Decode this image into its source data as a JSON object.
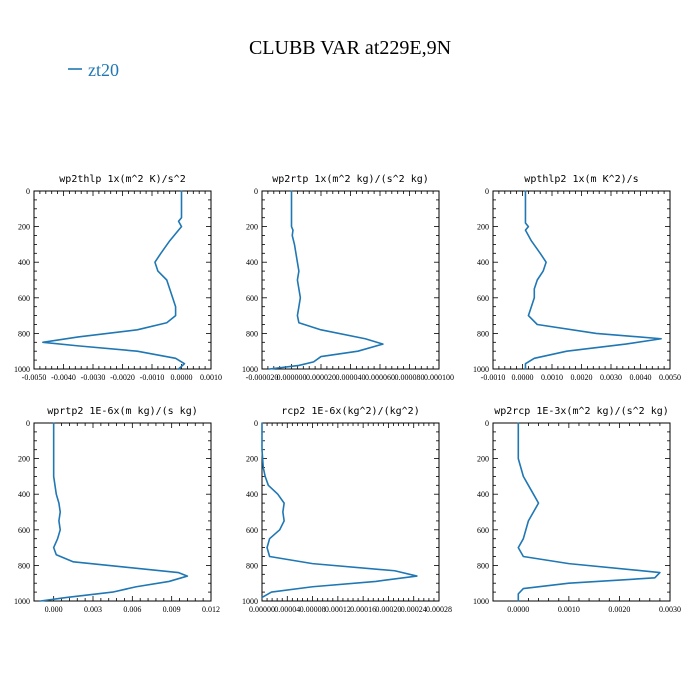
{
  "figure": {
    "title": "CLUBB VAR at229E,9N",
    "legend": [
      {
        "label": "zt20",
        "color": "#1f77b4"
      }
    ]
  },
  "chart_data": [
    {
      "type": "line",
      "title": "wp2thlp  1x(m^2 K)/s^2",
      "xlim": [
        -0.005,
        0.001
      ],
      "ylim": [
        1000,
        0
      ],
      "xticks": [
        -0.005,
        -0.004,
        -0.003,
        -0.002,
        -0.001,
        0.0,
        0.001
      ],
      "xtick_labels": [
        "-0.0050",
        "-0.0040",
        "-0.0030",
        "-0.0020",
        "-0.0010",
        "0.0000",
        "0.0010"
      ],
      "yticks": [
        0,
        200,
        400,
        600,
        800,
        1000
      ],
      "series": [
        {
          "name": "zt20",
          "x": [
            0.0,
            0.0,
            -0.0001,
            0.0,
            -0.0001,
            -0.0004,
            -0.0007,
            -0.0009,
            -0.0008,
            -0.0005,
            -0.0004,
            -0.0003,
            -0.0002,
            -0.0002,
            -0.0005,
            -0.0015,
            -0.0035,
            -0.0047,
            -0.0035,
            -0.0015,
            -0.0002,
            0.0001,
            -0.0001
          ],
          "y": [
            0,
            150,
            170,
            200,
            220,
            280,
            350,
            400,
            450,
            500,
            550,
            600,
            650,
            700,
            740,
            780,
            820,
            850,
            870,
            900,
            940,
            970,
            1000
          ]
        }
      ]
    },
    {
      "type": "line",
      "title": "wp2rtp  1x(m^2 kg)/(s^2 kg)",
      "xlim": [
        -2e-05,
        0.0001
      ],
      "ylim": [
        1000,
        0
      ],
      "xticks": [
        -2e-05,
        0.0,
        2e-05,
        4e-05,
        6e-05,
        8e-05,
        0.0001
      ],
      "xtick_labels": [
        "-0.000020",
        "0.000000",
        "0.000020",
        "0.000040",
        "0.000060",
        "0.000080",
        "0.000100"
      ],
      "yticks": [
        0,
        200,
        400,
        600,
        800,
        1000
      ],
      "series": [
        {
          "name": "zt20",
          "x": [
            0.0,
            0.0,
            0.0,
            1e-06,
            5e-07,
            2e-06,
            4e-06,
            5e-06,
            4e-06,
            5e-06,
            6e-06,
            5e-06,
            4e-06,
            5e-06,
            2e-05,
            5e-05,
            6.2e-05,
            4.5e-05,
            2e-05,
            1.5e-05,
            5e-06,
            -1.5e-05
          ],
          "y": [
            0,
            150,
            200,
            220,
            250,
            300,
            400,
            450,
            500,
            550,
            600,
            650,
            700,
            740,
            780,
            830,
            860,
            900,
            930,
            960,
            980,
            1000
          ]
        }
      ]
    },
    {
      "type": "line",
      "title": "wpthlp2  1x(m K^2)/s",
      "xlim": [
        -0.001,
        0.005
      ],
      "ylim": [
        1000,
        0
      ],
      "xticks": [
        -0.001,
        0.0,
        0.001,
        0.002,
        0.003,
        0.004,
        0.005
      ],
      "xtick_labels": [
        "-0.0010",
        "0.0000",
        "0.0010",
        "0.0020",
        "0.0030",
        "0.0040",
        "0.0050"
      ],
      "yticks": [
        0,
        200,
        400,
        600,
        800,
        1000
      ],
      "series": [
        {
          "name": "zt20",
          "x": [
            0.0001,
            0.0001,
            0.0001,
            0.0002,
            0.0001,
            0.0003,
            0.0006,
            0.0008,
            0.0007,
            0.0005,
            0.0004,
            0.0004,
            0.0003,
            0.0002,
            0.0005,
            0.0025,
            0.0047,
            0.0035,
            0.0015,
            0.0004,
            0.0001,
            0.0001
          ],
          "y": [
            0,
            150,
            180,
            200,
            220,
            280,
            350,
            400,
            450,
            500,
            550,
            600,
            650,
            700,
            750,
            800,
            830,
            860,
            900,
            940,
            970,
            1000
          ]
        }
      ]
    },
    {
      "type": "line",
      "title": "wprtp2  1E-6x(m kg)/(s kg)",
      "xlim": [
        -0.0015,
        0.012
      ],
      "ylim": [
        1000,
        0
      ],
      "xticks": [
        0.0,
        0.003,
        0.006,
        0.009,
        0.012
      ],
      "xtick_labels": [
        "0.000",
        "0.003",
        "0.006",
        "0.009",
        "0.012"
      ],
      "yticks": [
        0,
        200,
        400,
        600,
        800,
        1000
      ],
      "series": [
        {
          "name": "zt20",
          "x": [
            0.0,
            0.0,
            0.0,
            0.0002,
            0.0004,
            0.0005,
            0.0004,
            0.0005,
            0.0003,
            0.0,
            0.0002,
            0.0015,
            0.0055,
            0.0095,
            0.0102,
            0.0088,
            0.0063,
            0.0045,
            0.001,
            -0.001
          ],
          "y": [
            0,
            200,
            300,
            400,
            450,
            500,
            550,
            600,
            650,
            700,
            740,
            780,
            810,
            840,
            860,
            890,
            920,
            950,
            980,
            1000
          ]
        }
      ]
    },
    {
      "type": "line",
      "title": "rcp2  1E-6x(kg^2)/(kg^2)",
      "xlim": [
        0.0,
        0.00028
      ],
      "ylim": [
        1000,
        0
      ],
      "xticks": [
        0.0,
        4e-05,
        8e-05,
        0.00012,
        0.00016,
        0.0002,
        0.00024,
        0.00028
      ],
      "xtick_labels": [
        "0.00000",
        "0.00004",
        "0.00008",
        "0.00012",
        "0.00016",
        "0.00020",
        "0.00024",
        "0.00028"
      ],
      "yticks": [
        0,
        200,
        400,
        600,
        800,
        1000
      ],
      "series": [
        {
          "name": "zt20",
          "x": [
            0.0,
            0.0,
            2e-06,
            5e-06,
            1e-05,
            2.5e-05,
            3.5e-05,
            3.3e-05,
            3.5e-05,
            2.8e-05,
            1.2e-05,
            8e-06,
            1.2e-05,
            8e-05,
            0.00021,
            0.000245,
            0.00018,
            8e-05,
            1.5e-05,
            0.0
          ],
          "y": [
            0,
            150,
            250,
            300,
            350,
            400,
            450,
            500,
            550,
            600,
            650,
            700,
            750,
            790,
            830,
            860,
            890,
            920,
            950,
            980
          ]
        }
      ]
    },
    {
      "type": "line",
      "title": "wp2rcp  1E-3x(m^2 kg)/(s^2 kg)",
      "xlim": [
        -0.0005,
        0.003
      ],
      "ylim": [
        1000,
        0
      ],
      "xticks": [
        0.0,
        0.001,
        0.002,
        0.003
      ],
      "xtick_labels": [
        "0.0000",
        "0.0010",
        "0.0020",
        "0.0030"
      ],
      "yticks": [
        0,
        200,
        400,
        600,
        800,
        1000
      ],
      "series": [
        {
          "name": "zt20",
          "x": [
            0.0,
            0.0,
            0.0,
            5e-05,
            0.0001,
            0.0002,
            0.0003,
            0.0004,
            0.0003,
            0.0002,
            0.0001,
            0.0,
            0.0001,
            0.001,
            0.0028,
            0.0027,
            0.001,
            0.0001,
            0.0,
            0.0
          ],
          "y": [
            0,
            100,
            200,
            250,
            300,
            350,
            400,
            450,
            500,
            550,
            650,
            700,
            750,
            790,
            840,
            870,
            900,
            930,
            960,
            1000
          ]
        }
      ]
    }
  ]
}
